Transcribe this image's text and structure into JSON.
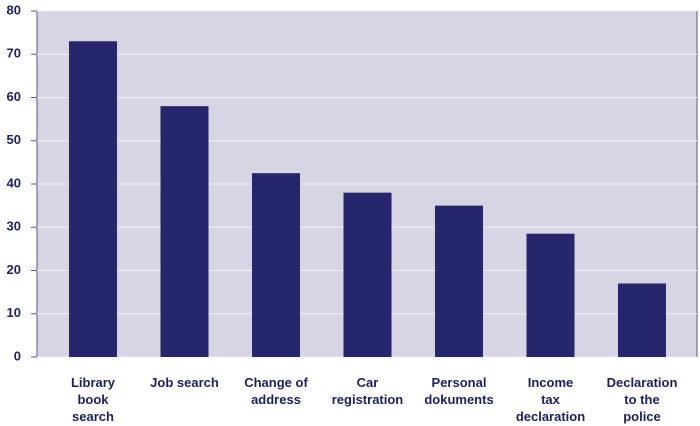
{
  "chart_data": {
    "type": "bar",
    "categories": [
      "Library\nbook\nsearch",
      "Job search",
      "Change of\naddress",
      "Car\nregistration",
      "Personal\ndokuments",
      "Income\ntax\ndeclaration",
      "Declaration\nto the\npolice"
    ],
    "values": [
      73,
      58,
      42.5,
      38,
      35,
      28.5,
      17
    ],
    "color": "#25266b",
    "ylim": [
      0,
      80
    ],
    "yticks": [
      0,
      10,
      20,
      30,
      40,
      50,
      60,
      70,
      80
    ],
    "grid": true
  }
}
